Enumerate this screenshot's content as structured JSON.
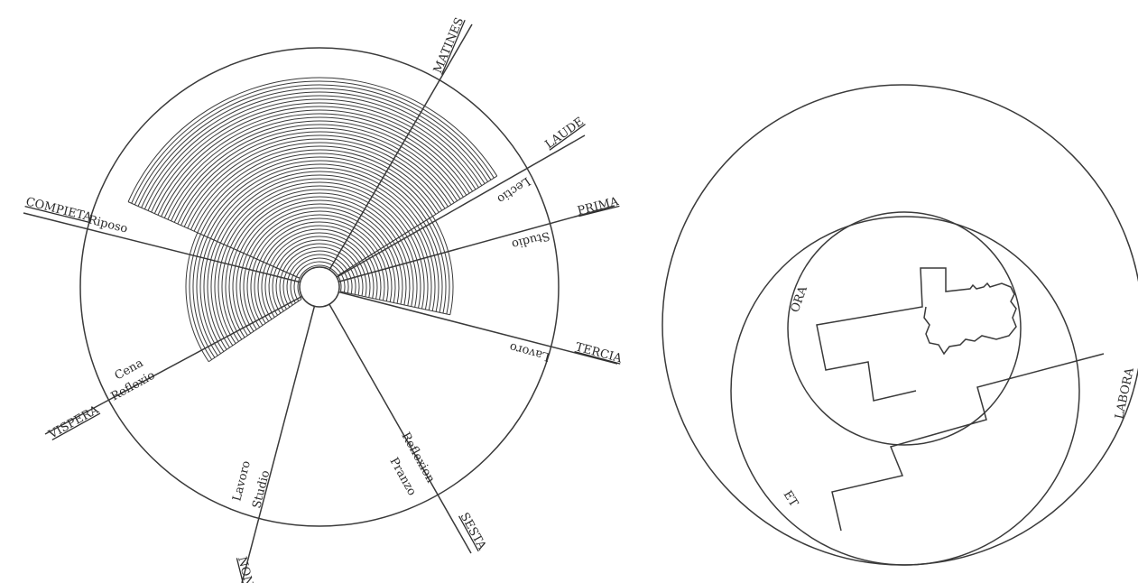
{
  "canonical_hours": {
    "hour_labels": [
      "MATINES",
      "LAUDE",
      "PRIMA",
      "TERCIA",
      "SESTA",
      "NONA",
      "VISPERA",
      "COMPIETA"
    ],
    "activity_labels": [
      "Lectio",
      "Studio",
      "Lavoro",
      "Reflexion",
      "Pranzo",
      "Lavoro",
      "Studio",
      "Cena",
      "Reflexio",
      "Riposo"
    ]
  },
  "ora_et_labora": {
    "labels": [
      "ORA",
      "ET",
      "LABORA"
    ]
  },
  "colors": {
    "line": "#3a3a3a",
    "text": "#2b2b2b",
    "background": "#ffffff"
  }
}
